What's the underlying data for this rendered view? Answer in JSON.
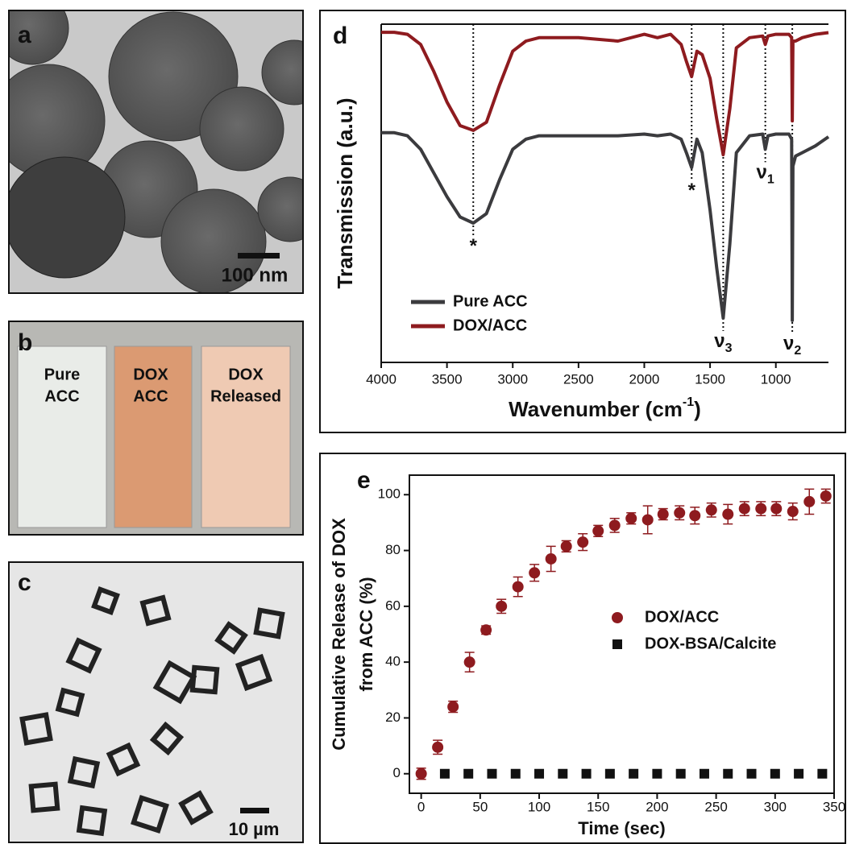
{
  "panels": {
    "a": {
      "label": "a",
      "scale_bar": "100 nm"
    },
    "b": {
      "label": "b",
      "samples": [
        [
          "Pure",
          "ACC"
        ],
        [
          "DOX",
          "ACC"
        ],
        [
          "DOX",
          "Released"
        ]
      ]
    },
    "c": {
      "label": "c",
      "scale_bar": "10 µm"
    }
  },
  "chart_data": [
    {
      "type": "line",
      "panel": "d",
      "ylabel": "Transmission (a.u.)",
      "xlabel": "Wavenumber (cm",
      "xlabel_sup": "-1",
      "xlabel_end": ")",
      "x": [
        4000,
        3900,
        3800,
        3700,
        3600,
        3500,
        3400,
        3300,
        3200,
        3100,
        3000,
        2900,
        2800,
        2500,
        2200,
        2000,
        1900,
        1800,
        1720,
        1680,
        1640,
        1600,
        1560,
        1500,
        1450,
        1400,
        1350,
        1300,
        1200,
        1100,
        1080,
        1060,
        1000,
        900,
        880,
        875,
        870,
        850,
        800,
        700,
        600
      ],
      "xlim": [
        4000,
        600
      ],
      "xticks": [
        4000,
        3500,
        3000,
        2500,
        2000,
        1500,
        1000
      ],
      "ylim": [
        0,
        10
      ],
      "legend": "lower-left",
      "series": [
        {
          "name": "Pure ACC",
          "color": "#3b3b3e",
          "values": [
            6.79,
            6.79,
            6.7,
            6.3,
            5.6,
            4.9,
            4.3,
            4.12,
            4.4,
            5.4,
            6.3,
            6.6,
            6.7,
            6.7,
            6.7,
            6.75,
            6.7,
            6.75,
            6.6,
            6.2,
            5.76,
            6.6,
            6.2,
            4.5,
            2.8,
            1.31,
            3.5,
            6.2,
            6.7,
            6.75,
            6.3,
            6.7,
            6.75,
            6.75,
            6.6,
            1.24,
            5.8,
            6.1,
            6.2,
            6.4,
            6.67
          ]
        },
        {
          "name": "DOX/ACC",
          "color": "#8e1b1f",
          "values": [
            9.76,
            9.76,
            9.7,
            9.4,
            8.6,
            7.7,
            7.0,
            6.86,
            7.1,
            8.2,
            9.2,
            9.5,
            9.6,
            9.6,
            9.5,
            9.7,
            9.6,
            9.7,
            9.4,
            8.9,
            8.45,
            9.2,
            9.1,
            8.4,
            7.2,
            6.14,
            7.5,
            9.3,
            9.6,
            9.65,
            9.4,
            9.65,
            9.7,
            9.7,
            9.6,
            7.14,
            9.5,
            9.5,
            9.6,
            9.7,
            9.75
          ]
        }
      ],
      "annotations": [
        {
          "x": 3300,
          "label": "*"
        },
        {
          "x": 1640,
          "label": "*"
        },
        {
          "x": 1400,
          "label": "ν",
          "subscript": "3"
        },
        {
          "x": 1080,
          "label": "ν",
          "subscript": "1"
        },
        {
          "x": 875,
          "label": "ν",
          "subscript": "2"
        }
      ]
    },
    {
      "type": "scatter",
      "panel": "e",
      "ylabel": [
        "Cumulative Release of DOX",
        "from ACC (%)"
      ],
      "xlabel": "Time (sec)",
      "xlim": [
        -10,
        350
      ],
      "xticks": [
        0,
        50,
        100,
        150,
        200,
        250,
        300,
        350
      ],
      "ylim": [
        -7,
        107
      ],
      "yticks": [
        0,
        20,
        40,
        60,
        80,
        100
      ],
      "series": [
        {
          "name": "DOX/ACC",
          "color": "#8e1b1f",
          "marker": "circle",
          "x": [
            0,
            14,
            27,
            41,
            55,
            68,
            82,
            96,
            110,
            123,
            137,
            150,
            164,
            178,
            192,
            205,
            219,
            232,
            246,
            260,
            274,
            288,
            301,
            315,
            329,
            343
          ],
          "values": [
            0,
            9.5,
            24,
            40,
            51.5,
            60,
            67,
            72,
            77,
            81.5,
            83,
            87,
            89,
            91.5,
            91,
            93,
            93.5,
            92.5,
            94.5,
            93,
            95,
            95,
            95,
            94,
            97.5,
            99.5
          ],
          "errors": [
            2,
            2.5,
            2,
            3.5,
            1.5,
            2.5,
            3.5,
            3,
            4.5,
            2,
            3,
            2,
            2.5,
            2,
            5,
            2,
            2.5,
            3,
            2.5,
            3.5,
            2.5,
            2.5,
            2.5,
            3,
            4.5,
            2.5
          ]
        },
        {
          "name": "DOX-BSA/Calcite",
          "color": "#111111",
          "marker": "square",
          "x": [
            20,
            40,
            60,
            80,
            100,
            120,
            140,
            160,
            180,
            200,
            220,
            240,
            260,
            280,
            300,
            320,
            340
          ],
          "values": [
            0,
            0,
            0,
            0,
            0,
            0,
            0,
            0,
            0,
            0,
            0,
            0,
            0,
            0,
            0,
            0,
            0
          ]
        }
      ]
    }
  ]
}
